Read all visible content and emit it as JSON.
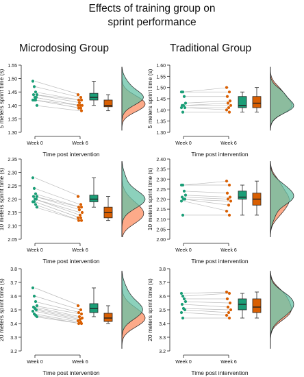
{
  "figure_title": [
    "Effects of training group on",
    "sprint performance"
  ],
  "group_titles": [
    "Microdosing Group",
    "Traditional Group"
  ],
  "colors": {
    "week0": "#1b9e77",
    "week6": "#d95f02",
    "week0_fill": "#66c2a5",
    "week6_fill": "#fc8d62",
    "pair_line": "#bbbbbb"
  },
  "chart_data": [
    {
      "type": "scatter",
      "group": "Microdosing Group",
      "ylabel": "5 meters sprint time (s)",
      "xlabel": "Time post intervention",
      "categories": [
        "Week 0",
        "Week 6"
      ],
      "ylim": [
        1.3,
        1.55
      ],
      "yticks": [
        "1.30",
        "1.35",
        "1.40",
        "1.45",
        "1.50",
        "1.55"
      ],
      "week0": [
        1.49,
        1.47,
        1.45,
        1.44,
        1.44,
        1.43,
        1.43,
        1.42,
        1.42,
        1.42,
        1.4
      ],
      "week6": [
        1.44,
        1.43,
        1.42,
        1.42,
        1.41,
        1.4,
        1.4,
        1.4,
        1.39,
        1.39,
        1.38
      ]
    },
    {
      "type": "scatter",
      "group": "Traditional Group",
      "ylabel": "5 meters sprint time (s)",
      "xlabel": "Time post intervention",
      "categories": [
        "Week 0",
        "Week 6"
      ],
      "ylim": [
        1.3,
        1.6
      ],
      "yticks": [
        "1.30",
        "1.35",
        "1.40",
        "1.45",
        "1.50",
        "1.55",
        "1.60"
      ],
      "week0": [
        1.48,
        1.48,
        1.46,
        1.43,
        1.42,
        1.42,
        1.41,
        1.41,
        1.39
      ],
      "week6": [
        1.5,
        1.48,
        1.46,
        1.44,
        1.43,
        1.42,
        1.41,
        1.4,
        1.39
      ]
    },
    {
      "type": "scatter",
      "group": "Microdosing Group",
      "ylabel": "10 meters sprint time (s)",
      "xlabel": "Time post intervention",
      "categories": [
        "Week 0",
        "Week 6"
      ],
      "ylim": [
        2.05,
        2.35
      ],
      "yticks": [
        "2.05",
        "2.10",
        "2.15",
        "2.20",
        "2.25",
        "2.30",
        "2.35"
      ],
      "week0": [
        2.28,
        2.24,
        2.22,
        2.21,
        2.21,
        2.2,
        2.2,
        2.19,
        2.19,
        2.18,
        2.17
      ],
      "week6": [
        2.21,
        2.18,
        2.17,
        2.17,
        2.16,
        2.15,
        2.14,
        2.13,
        2.13,
        2.12,
        2.12
      ]
    },
    {
      "type": "scatter",
      "group": "Traditional Group",
      "ylabel": "10 meters sprint time (s)",
      "xlabel": "Time post intervention",
      "categories": [
        "Week 0",
        "Week 6"
      ],
      "ylim": [
        2.0,
        2.4
      ],
      "yticks": [
        "2.00",
        "2.05",
        "2.10",
        "2.15",
        "2.20",
        "2.25",
        "2.30",
        "2.35",
        "2.40"
      ],
      "week0": [
        2.27,
        2.27,
        2.24,
        2.22,
        2.21,
        2.2,
        2.2,
        2.19,
        2.12
      ],
      "week6": [
        2.29,
        2.27,
        2.23,
        2.21,
        2.2,
        2.19,
        2.17,
        2.14,
        2.12
      ]
    },
    {
      "type": "scatter",
      "group": "Microdosing Group",
      "ylabel": "20 meters sprint time (s)",
      "xlabel": "Time post intervention",
      "categories": [
        "Week 0",
        "Week 6"
      ],
      "ylim": [
        3.2,
        3.8
      ],
      "yticks": [
        "3.2",
        "3.3",
        "3.4",
        "3.5",
        "3.6",
        "3.7",
        "3.8"
      ],
      "week0": [
        3.66,
        3.6,
        3.56,
        3.53,
        3.52,
        3.51,
        3.5,
        3.49,
        3.47,
        3.46,
        3.45
      ],
      "week6": [
        3.53,
        3.5,
        3.48,
        3.47,
        3.45,
        3.44,
        3.43,
        3.42,
        3.41,
        3.4,
        3.4
      ]
    },
    {
      "type": "scatter",
      "group": "Traditional Group",
      "ylabel": "20 meters sprint time (s)",
      "xlabel": "Time post intervention",
      "categories": [
        "Week 0",
        "Week 6"
      ],
      "ylim": [
        3.2,
        3.8
      ],
      "yticks": [
        "3.2",
        "3.3",
        "3.4",
        "3.5",
        "3.6",
        "3.7",
        "3.8"
      ],
      "week0": [
        3.62,
        3.6,
        3.58,
        3.56,
        3.54,
        3.51,
        3.5,
        3.48,
        3.44
      ],
      "week6": [
        3.63,
        3.62,
        3.58,
        3.55,
        3.52,
        3.5,
        3.48,
        3.46,
        3.44
      ]
    }
  ]
}
